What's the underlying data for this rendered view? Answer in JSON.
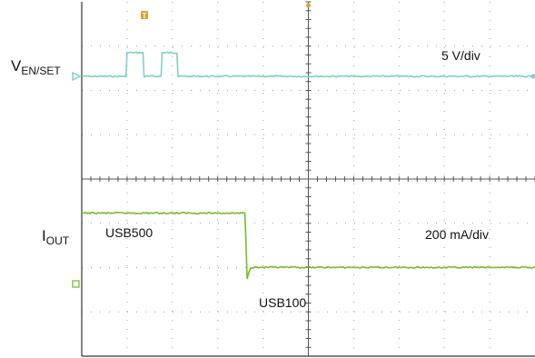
{
  "chart_data": {
    "type": "line",
    "title": "",
    "xlabel": "",
    "ylabel": "",
    "grid": true,
    "grid_divisions": {
      "x": 10,
      "y": 8
    },
    "series": [
      {
        "name": "VEN/SET",
        "label_main": "V",
        "label_sub": "EN/SET",
        "scale_label": "5 V/div",
        "color": "#7ecfd0",
        "points": [
          [
            0,
            0
          ],
          [
            1.95,
            0
          ],
          [
            2.0,
            1
          ],
          [
            2.7,
            1
          ],
          [
            2.75,
            0
          ],
          [
            3.5,
            0
          ],
          [
            3.55,
            1
          ],
          [
            4.2,
            1
          ],
          [
            4.25,
            0
          ],
          [
            20,
            0
          ]
        ]
      },
      {
        "name": "IOUT",
        "label_main": "I",
        "label_sub": "OUT",
        "scale_label": "200 mA/div",
        "color": "#72bf2a",
        "points": [
          [
            0,
            1.25
          ],
          [
            7.2,
            1.25
          ],
          [
            7.3,
            -0.3
          ],
          [
            7.45,
            -0.05
          ],
          [
            20,
            -0.05
          ]
        ]
      }
    ],
    "annotations": [
      "USB500",
      "USB100"
    ]
  },
  "icons": {
    "trigger_marker": "trigger-t-icon",
    "ch1_marker": "ch1-ground-arrow-icon",
    "ch2_marker": "ch2-ground-arrow-icon"
  },
  "colors": {
    "grid": "#9a9a9a",
    "trigger": "#e3a12a"
  }
}
